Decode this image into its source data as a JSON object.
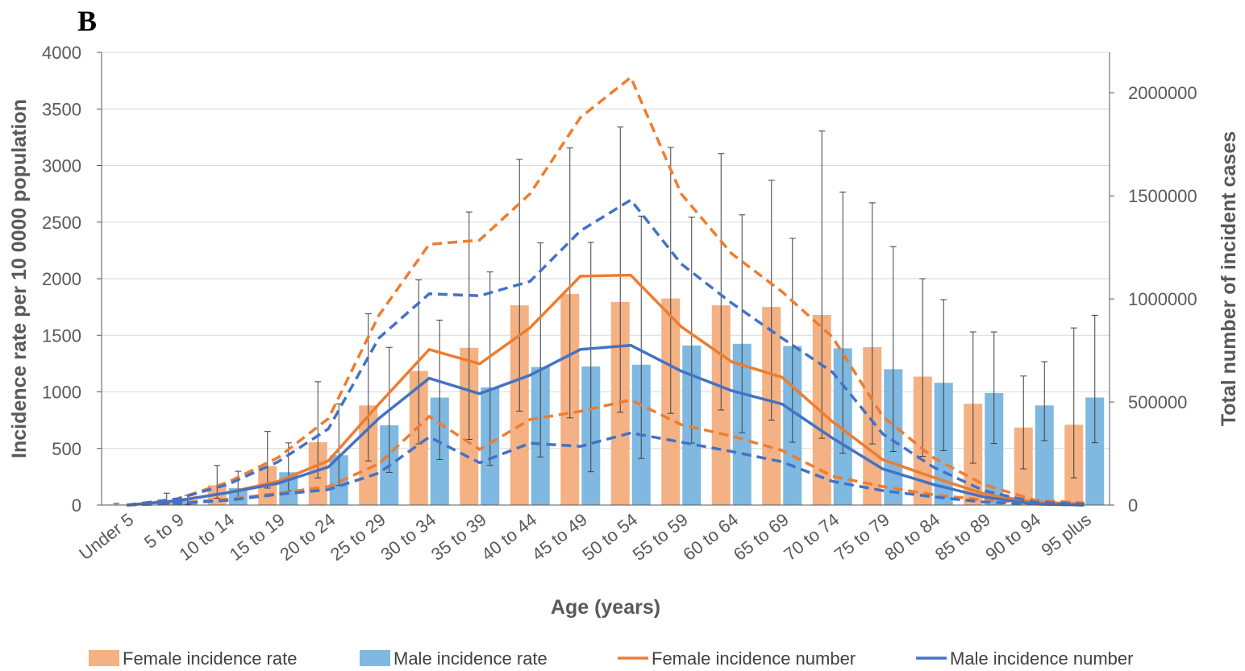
{
  "panel_label": "B",
  "chart_data": {
    "type": "bar",
    "title": "",
    "xlabel": "Age (years)",
    "ylabel": "Incidence  rate per 10 0000 population",
    "y2label": "Total number of incident cases",
    "ylim": [
      0,
      4000
    ],
    "y2lim": [
      0,
      2196000
    ],
    "y_ticks": [
      "0",
      "500",
      "1000",
      "1500",
      "2000",
      "2500",
      "3000",
      "3500",
      "4000"
    ],
    "y2_ticks": [
      "0",
      "500000",
      "1000000",
      "1500000",
      "2000000"
    ],
    "grid": true,
    "legend_position": "bottom",
    "categories": [
      "Under 5",
      "5 to 9",
      "10 to 14",
      "15 to 19",
      "20 to 24",
      "25 to 29",
      "30 to 34",
      "35 to 39",
      "40 to 44",
      "45 to 49",
      "50 to 54",
      "55 to 59",
      "60 to 64",
      "65 to 69",
      "70 to 74",
      "75 to 79",
      "80 to 84",
      "85 to 89",
      "90 to 94",
      "95 plus"
    ],
    "bar_series": [
      {
        "name": "Female incidence rate",
        "color": "#F4B183",
        "values": [
          5,
          45,
          175,
          345,
          555,
          880,
          1185,
          1390,
          1765,
          1865,
          1795,
          1825,
          1765,
          1750,
          1680,
          1395,
          1135,
          895,
          685,
          710
        ],
        "error_low": [
          0,
          10,
          60,
          150,
          240,
          390,
          540,
          580,
          830,
          770,
          820,
          810,
          840,
          750,
          590,
          540,
          430,
          370,
          320,
          240
        ],
        "error_high": [
          15,
          105,
          350,
          650,
          1090,
          1690,
          1990,
          2590,
          3055,
          3155,
          3340,
          3160,
          3105,
          2870,
          3305,
          2670,
          2000,
          1530,
          1140,
          1565
        ]
      },
      {
        "name": "Male incidence rate",
        "color": "#7FB8E0",
        "values": [
          5,
          35,
          150,
          290,
          440,
          705,
          950,
          1040,
          1220,
          1225,
          1240,
          1410,
          1425,
          1405,
          1385,
          1200,
          1080,
          990,
          880,
          950
        ]
      }
    ],
    "line_series": [
      {
        "name": "Female incidence number",
        "axis": "right",
        "color": "#ED7D31",
        "values": [
          0,
          22000,
          60000,
          115000,
          215000,
          490000,
          755000,
          685000,
          860000,
          1110000,
          1115000,
          865000,
          695000,
          620000,
          405000,
          220000,
          135000,
          55000,
          15000,
          5000
        ],
        "upper": [
          0,
          30000,
          110000,
          230000,
          420000,
          920000,
          1265000,
          1285000,
          1510000,
          1880000,
          2075000,
          1510000,
          1220000,
          1035000,
          815000,
          430000,
          230000,
          100000,
          25000,
          10000
        ],
        "lower": [
          0,
          10000,
          28000,
          57000,
          90000,
          200000,
          430000,
          270000,
          415000,
          455000,
          510000,
          390000,
          335000,
          265000,
          140000,
          90000,
          50000,
          25000,
          10000,
          5000
        ]
      },
      {
        "name": "Male incidence number",
        "axis": "right",
        "color": "#4472C4",
        "values": [
          0,
          20000,
          60000,
          105000,
          185000,
          420000,
          615000,
          540000,
          630000,
          755000,
          775000,
          650000,
          555000,
          490000,
          325000,
          175000,
          100000,
          40000,
          5000,
          0
        ],
        "upper": [
          0,
          30000,
          100000,
          210000,
          370000,
          810000,
          1025000,
          1015000,
          1085000,
          1330000,
          1480000,
          1170000,
          980000,
          810000,
          645000,
          345000,
          185000,
          70000,
          15000,
          5000
        ],
        "lower": [
          0,
          8000,
          23000,
          52000,
          75000,
          155000,
          330000,
          205000,
          300000,
          285000,
          350000,
          305000,
          260000,
          210000,
          115000,
          70000,
          40000,
          15000,
          5000,
          0
        ]
      }
    ]
  },
  "legend": [
    {
      "label": "Female incidence rate",
      "kind": "bar",
      "color": "#F4B183"
    },
    {
      "label": "Male incidence rate",
      "kind": "bar",
      "color": "#7FB8E0"
    },
    {
      "label": "Female incidence number",
      "kind": "line",
      "color": "#ED7D31"
    },
    {
      "label": "Male incidence number",
      "kind": "line",
      "color": "#4472C4"
    }
  ]
}
